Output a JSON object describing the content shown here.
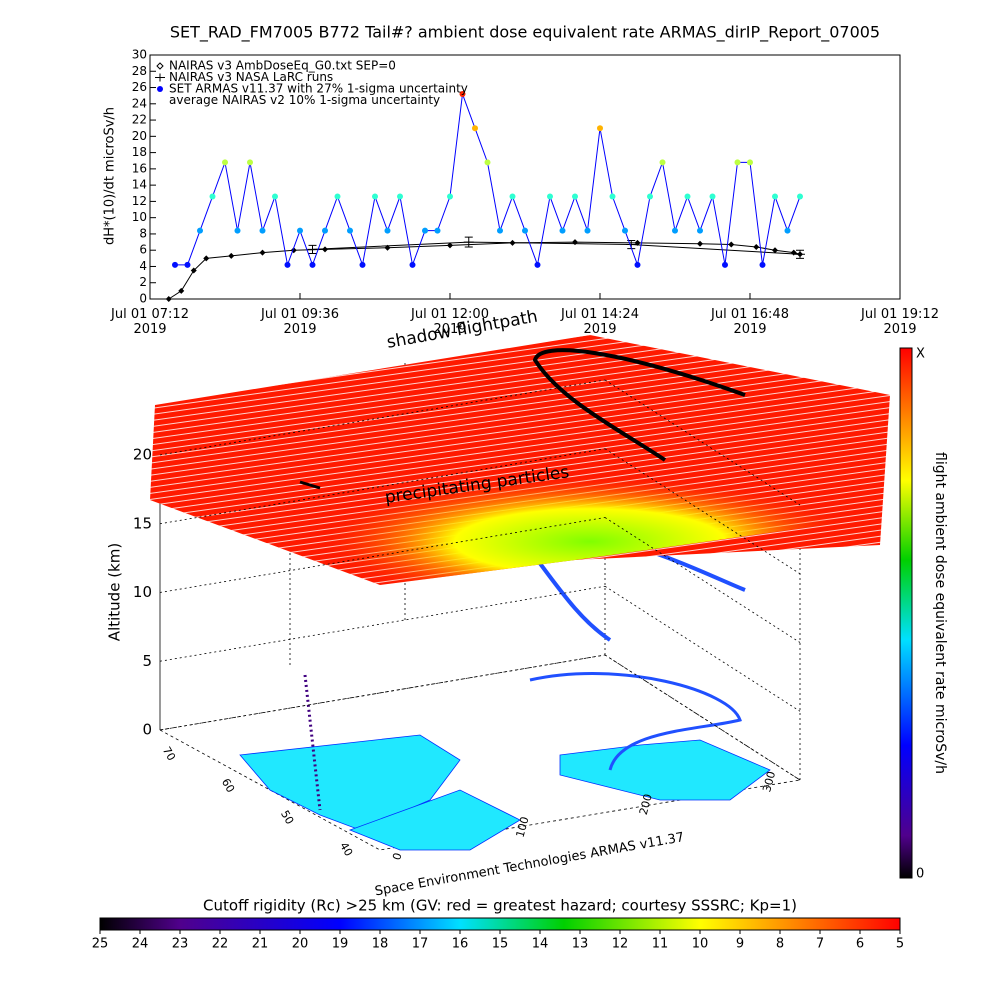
{
  "chart_data": [
    {
      "type": "line",
      "title": "SET_RAD_FM7005  B772 Tail#? ambient dose equivalent rate ARMAS_dirIP_Report_07005",
      "ylabel": "dH*(10)/dt microSv/h",
      "xlim": [
        7.2,
        19.2
      ],
      "xticks": [
        {
          "value": 7.2,
          "label": "Jul 01 07:12 2019"
        },
        {
          "value": 9.6,
          "label": "Jul 01 09:36 2019"
        },
        {
          "value": 12.0,
          "label": "Jul 01 12:00 2019"
        },
        {
          "value": 14.4,
          "label": "Jul 01 14:24 2019"
        },
        {
          "value": 16.8,
          "label": "Jul 01 16:48 2019"
        },
        {
          "value": 19.2,
          "label": "Jul 01 19:12 2019"
        }
      ],
      "ylim": [
        0,
        30
      ],
      "yticks": [
        0,
        2,
        4,
        6,
        8,
        10,
        12,
        14,
        16,
        18,
        20,
        22,
        24,
        26,
        28,
        30
      ],
      "series": [
        {
          "name": "NAIRAS v3 AmbDoseEq_G0.txt SEP=0",
          "color": "#000000",
          "marker": "diamond",
          "x": [
            7.5,
            7.7,
            7.9,
            8.1,
            8.5,
            9,
            9.5,
            10,
            11,
            12,
            13,
            14,
            15,
            16,
            16.5,
            16.9,
            17.2,
            17.5,
            17.6
          ],
          "values": [
            0,
            1,
            3.5,
            5,
            5.3,
            5.7,
            6,
            6.1,
            6.3,
            6.6,
            6.9,
            7,
            6.9,
            6.8,
            6.7,
            6.4,
            6,
            5.7,
            5.5
          ]
        },
        {
          "name": "NAIRAS v3 NASA LaRC runs",
          "color": "#000000",
          "marker": "plus",
          "x": [
            9.8,
            12.3,
            14.9,
            17.6
          ],
          "values": [
            6.1,
            7,
            6.7,
            5.5
          ],
          "errors": [
            0.5,
            0.6,
            0.5,
            0.5
          ]
        },
        {
          "name": "SET ARMAS v11.37 with 27% 1-sigma uncertainty",
          "color": "#0000ff",
          "marker": "dot",
          "x": [
            7.6,
            7.8,
            8.0,
            8.2,
            8.4,
            8.6,
            8.8,
            9.0,
            9.2,
            9.4,
            9.6,
            9.8,
            10.0,
            10.2,
            10.4,
            10.6,
            10.8,
            11.0,
            11.2,
            11.4,
            11.6,
            11.8,
            12.0,
            12.2,
            12.4,
            12.6,
            12.8,
            13.0,
            13.2,
            13.4,
            13.6,
            13.8,
            14.0,
            14.2,
            14.4,
            14.6,
            14.8,
            15.0,
            15.2,
            15.4,
            15.6,
            15.8,
            16.0,
            16.2,
            16.4,
            16.6,
            16.8,
            17.0,
            17.2,
            17.4,
            17.6
          ],
          "values": [
            4.2,
            4.2,
            8.4,
            12.6,
            16.8,
            8.4,
            16.8,
            8.4,
            12.6,
            4.2,
            8.4,
            4.2,
            8.4,
            12.6,
            8.4,
            4.2,
            12.6,
            8.4,
            12.6,
            4.2,
            8.4,
            8.4,
            12.6,
            25.2,
            21,
            16.8,
            8.4,
            12.6,
            8.4,
            4.2,
            12.6,
            8.4,
            12.6,
            8.4,
            21,
            12.6,
            8.4,
            4.2,
            12.6,
            16.8,
            8.4,
            12.6,
            8.4,
            12.6,
            4.2,
            16.8,
            16.8,
            4.2,
            12.6,
            8.4,
            12.6
          ]
        },
        {
          "name": "average NAIRAS v2 10% 1-sigma uncertainty",
          "color": "#000000",
          "marker": "none",
          "x": [
            7.5,
            17.6
          ],
          "values": [
            0,
            0
          ]
        }
      ]
    },
    {
      "type": "surface3d",
      "annotations": [
        "shadow flightpath",
        "precipitating particles"
      ],
      "zlabel": "Altitude (km)",
      "zlim": [
        0,
        20
      ],
      "zticks": [
        0,
        5,
        10,
        15,
        20
      ],
      "lat_ticks": [
        70,
        60,
        50,
        40
      ],
      "lon_ticks": [
        0,
        100,
        200,
        300
      ],
      "footer": "Space Environment Technologies ARMAS v11.37"
    },
    {
      "type": "colorbar",
      "label": "flight ambient dose equivalent rate microSv/h",
      "end_labels": [
        "X",
        "0"
      ]
    },
    {
      "type": "colorbar",
      "label": "Cutoff rigidity (Rc) >25 km (GV: red = greatest hazard; courtesy SSSRC; Kp=1)",
      "xlim": [
        25,
        5
      ],
      "xticks": [
        25,
        24,
        23,
        22,
        21,
        20,
        19,
        18,
        17,
        16,
        15,
        14,
        13,
        12,
        11,
        10,
        9,
        8,
        7,
        6,
        5
      ]
    }
  ]
}
